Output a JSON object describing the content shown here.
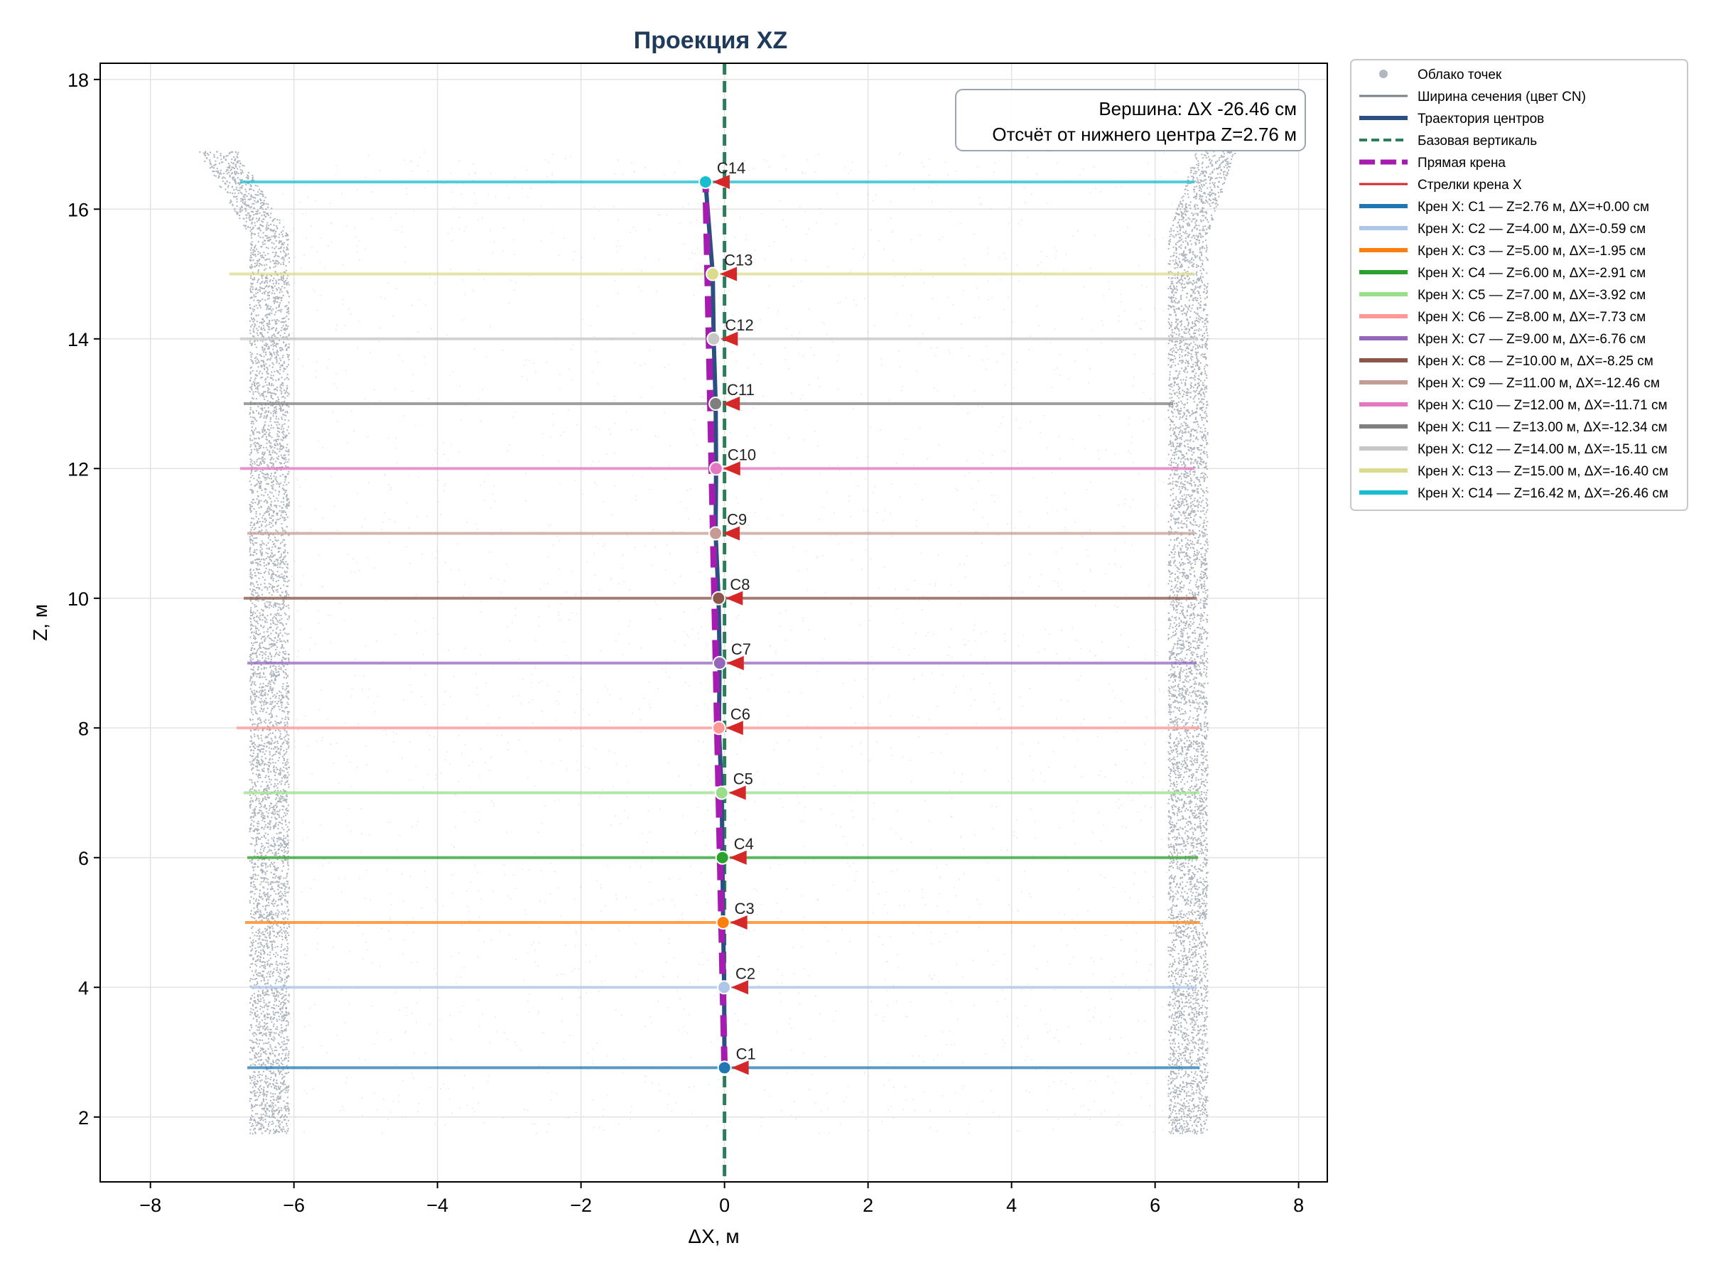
{
  "chart_data": {
    "type": "line",
    "title": "Проекция XZ",
    "xlabel": "ΔX, м",
    "ylabel": "Z, м",
    "xlim": [
      -8.7,
      8.4
    ],
    "ylim": [
      1.0,
      18.25
    ],
    "xticks": [
      -8,
      -6,
      -4,
      -2,
      0,
      2,
      4,
      6,
      8
    ],
    "yticks": [
      2,
      4,
      6,
      8,
      10,
      12,
      14,
      16,
      18
    ],
    "xtick_labels": [
      "−8",
      "−6",
      "−4",
      "−2",
      "0",
      "2",
      "4",
      "6",
      "8"
    ],
    "ytick_labels": [
      "2",
      "4",
      "6",
      "8",
      "10",
      "12",
      "14",
      "16",
      "18"
    ],
    "grid": true,
    "legend_position": "outside-top-right",
    "annotation": {
      "line1": "Вершина: ΔX -26.46 см",
      "line2": "Отсчёт от нижнего центра Z=2.76 м"
    },
    "baseline_x": 0,
    "sections": [
      {
        "id": "C1",
        "z": 2.76,
        "dx_cm": 0.0,
        "x_left": -6.65,
        "x_right": 6.62,
        "color": "#1f77b4",
        "legend": "Крен X: C1 — Z=2.76 м, ΔX=+0.00 см"
      },
      {
        "id": "C2",
        "z": 4.0,
        "dx_cm": -0.59,
        "x_left": -6.6,
        "x_right": 6.58,
        "color": "#aec7e8",
        "legend": "Крен X: C2 — Z=4.00 м, ΔX=-0.59 см"
      },
      {
        "id": "C3",
        "z": 5.0,
        "dx_cm": -1.95,
        "x_left": -6.68,
        "x_right": 6.62,
        "color": "#ff7f0e",
        "legend": "Крен X: C3 — Z=5.00 м, ΔX=-1.95 см"
      },
      {
        "id": "C4",
        "z": 6.0,
        "dx_cm": -2.91,
        "x_left": -6.65,
        "x_right": 6.6,
        "color": "#2ca02c",
        "legend": "Крен X: C4 — Z=6.00 м, ΔX=-2.91 см"
      },
      {
        "id": "C5",
        "z": 7.0,
        "dx_cm": -3.92,
        "x_left": -6.7,
        "x_right": 6.62,
        "color": "#98df8a",
        "legend": "Крен X: C5 — Z=7.00 м, ΔX=-3.92 см"
      },
      {
        "id": "C6",
        "z": 8.0,
        "dx_cm": -7.73,
        "x_left": -6.8,
        "x_right": 6.62,
        "color": "#ff9896",
        "legend": "Крен X: C6 — Z=8.00 м, ΔX=-7.73 см"
      },
      {
        "id": "C7",
        "z": 9.0,
        "dx_cm": -6.76,
        "x_left": -6.65,
        "x_right": 6.58,
        "color": "#9467bd",
        "legend": "Крен X: C7 — Z=9.00 м, ΔX=-6.76 см"
      },
      {
        "id": "C8",
        "z": 10.0,
        "dx_cm": -8.25,
        "x_left": -6.7,
        "x_right": 6.58,
        "color": "#8c564b",
        "legend": "Крен X: C8 — Z=10.00 м, ΔX=-8.25 см"
      },
      {
        "id": "C9",
        "z": 11.0,
        "dx_cm": -12.46,
        "x_left": -6.65,
        "x_right": 6.55,
        "color": "#c49c94",
        "legend": "Крен X: C9 — Z=11.00 м, ΔX=-12.46 см"
      },
      {
        "id": "C10",
        "z": 12.0,
        "dx_cm": -11.71,
        "x_left": -6.75,
        "x_right": 6.55,
        "color": "#e377c2",
        "legend": "Крен X: C10 — Z=12.00 м, ΔX=-11.71 см"
      },
      {
        "id": "C11",
        "z": 13.0,
        "dx_cm": -12.34,
        "x_left": -6.7,
        "x_right": 6.25,
        "color": "#7f7f7f",
        "legend": "Крен X: C11 — Z=13.00 м, ΔX=-12.34 см"
      },
      {
        "id": "C12",
        "z": 14.0,
        "dx_cm": -15.11,
        "x_left": -6.75,
        "x_right": 6.6,
        "color": "#c7c7c7",
        "legend": "Крен X: C12 — Z=14.00 м, ΔX=-15.11 см"
      },
      {
        "id": "C13",
        "z": 15.0,
        "dx_cm": -16.4,
        "x_left": -6.9,
        "x_right": 6.55,
        "color": "#dbdb8d",
        "legend": "Крен X: C13 — Z=15.00 м, ΔX=-16.40 см"
      },
      {
        "id": "C14",
        "z": 16.42,
        "dx_cm": -26.46,
        "x_left": -6.75,
        "x_right": 6.55,
        "color": "#17becf",
        "legend": "Крен X: C14 — Z=16.42 м, ΔX=-26.46 см"
      }
    ],
    "legend_items": [
      {
        "label": "Облако точек",
        "kind": "marker",
        "color": "#8f99a6"
      },
      {
        "label": "Ширина сечения (цвет CN)",
        "kind": "line",
        "color": "#778087"
      },
      {
        "label": "Траектория центров",
        "kind": "thick",
        "color": "#2a4f80"
      },
      {
        "label": "Базовая вертикаль",
        "kind": "dashed",
        "color": "#2e7d5a"
      },
      {
        "label": "Прямая крена",
        "kind": "dashed-thick",
        "color": "#a61cb0"
      },
      {
        "label": "Стрелки крена X",
        "kind": "line",
        "color": "#d62728"
      }
    ],
    "colors": {
      "trajectory": "#2a4f80",
      "baseline": "#2e7d5a",
      "tilt_line": "#a61cb0",
      "arrows": "#d62728",
      "cloud": "#8f99a6",
      "title": "#1f3a5a"
    }
  }
}
